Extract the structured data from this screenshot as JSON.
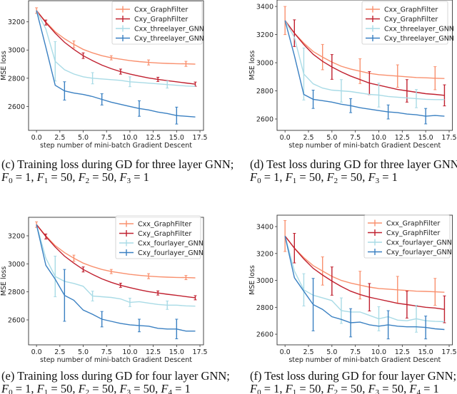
{
  "chart_data": [
    {
      "panel": "c",
      "type": "line",
      "caption": "(c) Training loss during GD for three layer GNN;",
      "params": [
        {
          "sub": "0",
          "val": "1"
        },
        {
          "sub": "1",
          "val": "50"
        },
        {
          "sub": "2",
          "val": "50"
        },
        {
          "sub": "3",
          "val": "1"
        }
      ],
      "xlabel": "step number of mini-batch Gradient Descent",
      "ylabel": "MSE loss",
      "xlim": [
        -0.85,
        17.88
      ],
      "ylim": [
        2430,
        3350
      ],
      "xticks": [
        "0.0",
        "2.5",
        "5.0",
        "7.5",
        "10.0",
        "12.5",
        "15.0",
        "17.5"
      ],
      "yticks": [
        "2600",
        "2800",
        "3000",
        "3200"
      ],
      "grid": false,
      "legend_position": "top-right",
      "x": [
        0,
        1,
        2,
        3,
        4,
        5,
        6,
        7,
        8,
        9,
        10,
        11,
        12,
        13,
        14,
        15,
        16,
        17
      ],
      "series": [
        {
          "name": "Cxx_GraphFilter",
          "color": "#f9906e",
          "y": [
            3280,
            3200,
            3130,
            3080,
            3040,
            3005,
            2980,
            2960,
            2945,
            2935,
            2925,
            2918,
            2912,
            2908,
            2905,
            2903,
            2902,
            2900
          ],
          "errorbars": [
            [
              0,
              20
            ],
            [
              4,
              25
            ],
            [
              8,
              15
            ],
            [
              12,
              18
            ],
            [
              16,
              18
            ]
          ]
        },
        {
          "name": "Cxy_GraphFilter",
          "color": "#c0202f",
          "y": [
            3280,
            3195,
            3120,
            3055,
            3005,
            2960,
            2925,
            2893,
            2868,
            2847,
            2830,
            2815,
            2802,
            2792,
            2783,
            2775,
            2766,
            2758
          ],
          "errorbars": [
            [
              1,
              18
            ],
            [
              5,
              20
            ],
            [
              9,
              18
            ],
            [
              13,
              15
            ],
            [
              17,
              15
            ]
          ]
        },
        {
          "name": "Cxx_threelayer_GNN",
          "color": "#a9dbe6",
          "y": [
            3280,
            3150,
            2920,
            2860,
            2830,
            2810,
            2800,
            2795,
            2790,
            2785,
            2775,
            2770,
            2765,
            2760,
            2755,
            2750,
            2745,
            2742
          ],
          "errorbars": [
            [
              2,
              140
            ],
            [
              6,
              40
            ],
            [
              10,
              35
            ],
            [
              14,
              25
            ]
          ]
        },
        {
          "name": "Cxy_threelayer_GNN",
          "color": "#3a80c2",
          "y": [
            3280,
            3020,
            2750,
            2710,
            2695,
            2685,
            2670,
            2650,
            2630,
            2615,
            2600,
            2585,
            2575,
            2560,
            2550,
            2535,
            2530,
            2525
          ],
          "errorbars": [
            [
              3,
              65
            ],
            [
              7,
              40
            ],
            [
              11,
              55
            ],
            [
              15,
              60
            ]
          ]
        }
      ]
    },
    {
      "panel": "d",
      "type": "line",
      "caption": "(d) Test loss during GD for three layer GNN;",
      "params": [
        {
          "sub": "0",
          "val": "1"
        },
        {
          "sub": "1",
          "val": "50"
        },
        {
          "sub": "2",
          "val": "50"
        },
        {
          "sub": "3",
          "val": "1"
        }
      ],
      "xlabel": "step number of mini-batch Gradient Descent",
      "ylabel": "MSE loss",
      "xlim": [
        -0.85,
        17.85
      ],
      "ylim": [
        2519,
        3446
      ],
      "xticks": [
        "0.0",
        "2.5",
        "5.0",
        "7.5",
        "10.0",
        "12.5",
        "15.0",
        "17.5"
      ],
      "yticks": [
        "2600",
        "2800",
        "3000",
        "3200",
        "3400"
      ],
      "grid": false,
      "legend_position": "top-right",
      "x": [
        0,
        1,
        2,
        3,
        4,
        5,
        6,
        7,
        8,
        9,
        10,
        11,
        12,
        13,
        14,
        15,
        16,
        17
      ],
      "series": [
        {
          "name": "Cxx_GraphFilter",
          "color": "#f9906e",
          "y": [
            3300,
            3210,
            3140,
            3080,
            3040,
            3005,
            2975,
            2955,
            2940,
            2925,
            2915,
            2910,
            2905,
            2900,
            2895,
            2893,
            2890,
            2888
          ],
          "errorbars": [
            [
              0,
              100
            ],
            [
              4,
              90
            ],
            [
              8,
              88
            ],
            [
              12,
              80
            ],
            [
              16,
              82
            ]
          ]
        },
        {
          "name": "Cxy_GraphFilter",
          "color": "#c0202f",
          "y": [
            3300,
            3210,
            3130,
            3060,
            3010,
            2970,
            2935,
            2905,
            2880,
            2855,
            2840,
            2825,
            2810,
            2800,
            2790,
            2780,
            2775,
            2768
          ],
          "errorbars": [
            [
              1,
              95
            ],
            [
              5,
              88
            ],
            [
              9,
              82
            ],
            [
              13,
              80
            ],
            [
              17,
              75
            ]
          ]
        },
        {
          "name": "Cxx_threelayer_GNN",
          "color": "#a9dbe6",
          "y": [
            3300,
            3180,
            2920,
            2850,
            2820,
            2805,
            2800,
            2795,
            2785,
            2775,
            2770,
            2760,
            2755,
            2750,
            2745,
            2740,
            2738,
            2738
          ],
          "errorbars": [
            [
              2,
              185
            ],
            [
              6,
              80
            ],
            [
              10,
              85
            ],
            [
              14,
              65
            ]
          ]
        },
        {
          "name": "Cxy_threelayer_GNN",
          "color": "#3a80c2",
          "y": [
            3300,
            3050,
            2775,
            2740,
            2730,
            2720,
            2705,
            2695,
            2680,
            2670,
            2660,
            2650,
            2645,
            2635,
            2630,
            2620,
            2625,
            2620
          ],
          "errorbars": [
            [
              3,
              65
            ],
            [
              7,
              50
            ],
            [
              11,
              50
            ],
            [
              15,
              55
            ]
          ]
        }
      ]
    },
    {
      "panel": "e",
      "type": "line",
      "caption": "(e) Training loss during GD for four layer GNN;",
      "params": [
        {
          "sub": "0",
          "val": "1"
        },
        {
          "sub": "1",
          "val": "50"
        },
        {
          "sub": "2",
          "val": "50"
        },
        {
          "sub": "3",
          "val": "50"
        },
        {
          "sub": "4",
          "val": "1"
        }
      ],
      "xlabel": "step number of mini-batch Gradient Descent",
      "ylabel": "MSE loss",
      "xlim": [
        -0.85,
        17.88
      ],
      "ylim": [
        2422,
        3332
      ],
      "xticks": [
        "0.0",
        "2.5",
        "5.0",
        "7.5",
        "10.0",
        "12.5",
        "15.0",
        "17.5"
      ],
      "yticks": [
        "2600",
        "2800",
        "3000",
        "3200"
      ],
      "grid": false,
      "legend_position": "top-right",
      "x": [
        0,
        1,
        2,
        3,
        4,
        5,
        6,
        7,
        8,
        9,
        10,
        11,
        12,
        13,
        14,
        15,
        16,
        17
      ],
      "series": [
        {
          "name": "Cxx_GraphFilter",
          "color": "#f9906e",
          "y": [
            3280,
            3200,
            3130,
            3080,
            3040,
            3005,
            2980,
            2960,
            2945,
            2935,
            2925,
            2918,
            2912,
            2908,
            2905,
            2903,
            2902,
            2900
          ],
          "errorbars": [
            [
              0,
              20
            ],
            [
              4,
              22
            ],
            [
              8,
              15
            ],
            [
              12,
              18
            ],
            [
              16,
              15
            ]
          ]
        },
        {
          "name": "Cxy_GraphFilter",
          "color": "#c0202f",
          "y": [
            3280,
            3195,
            3120,
            3055,
            3005,
            2960,
            2925,
            2893,
            2868,
            2847,
            2830,
            2815,
            2802,
            2792,
            2783,
            2775,
            2766,
            2758
          ],
          "errorbars": [
            [
              1,
              18
            ],
            [
              5,
              18
            ],
            [
              9,
              15
            ],
            [
              13,
              15
            ],
            [
              17,
              15
            ]
          ]
        },
        {
          "name": "Cxx_fourlayer_GNN",
          "color": "#a9dbe6",
          "y": [
            3280,
            3040,
            2910,
            2875,
            2860,
            2840,
            2770,
            2765,
            2760,
            2750,
            2725,
            2730,
            2720,
            2710,
            2705,
            2705,
            2700,
            2698
          ],
          "errorbars": [
            [
              2,
              145
            ],
            [
              6,
              35
            ],
            [
              10,
              30
            ],
            [
              14,
              30
            ]
          ]
        },
        {
          "name": "Cxy_fourlayer_GNN",
          "color": "#3a80c2",
          "y": [
            3280,
            2990,
            2890,
            2775,
            2740,
            2670,
            2640,
            2605,
            2590,
            2575,
            2565,
            2560,
            2555,
            2540,
            2535,
            2535,
            2520,
            2520
          ],
          "errorbars": [
            [
              3,
              185
            ],
            [
              7,
              55
            ],
            [
              11,
              45
            ],
            [
              15,
              70
            ]
          ]
        }
      ]
    },
    {
      "panel": "f",
      "type": "line",
      "caption": "(f) Test loss during GD for four layer GNN;",
      "params": [
        {
          "sub": "0",
          "val": "1"
        },
        {
          "sub": "1",
          "val": "50"
        },
        {
          "sub": "2",
          "val": "50"
        },
        {
          "sub": "3",
          "val": "50"
        },
        {
          "sub": "4",
          "val": "1"
        }
      ],
      "xlabel": "step number of mini-batch Gradient Descent",
      "ylabel": "MSE loss",
      "xlim": [
        -0.85,
        17.85
      ],
      "ylim": [
        2521,
        3485
      ],
      "xticks": [
        "0.0",
        "2.5",
        "5.0",
        "7.5",
        "10.0",
        "12.5",
        "15.0",
        "17.5"
      ],
      "yticks": [
        "2600",
        "2800",
        "3000",
        "3200",
        "3400"
      ],
      "grid": false,
      "legend_position": "top-right",
      "x": [
        0,
        1,
        2,
        3,
        4,
        5,
        6,
        7,
        8,
        9,
        10,
        11,
        12,
        13,
        14,
        15,
        16,
        17
      ],
      "series": [
        {
          "name": "Cxx_GraphFilter",
          "color": "#f9906e",
          "y": [
            3330,
            3240,
            3170,
            3110,
            3070,
            3030,
            3000,
            2980,
            2965,
            2950,
            2940,
            2935,
            2930,
            2925,
            2920,
            2918,
            2915,
            2912
          ],
          "errorbars": [
            [
              0,
              115
            ],
            [
              4,
              105
            ],
            [
              8,
              103
            ],
            [
              12,
              100
            ],
            [
              16,
              100
            ]
          ]
        },
        {
          "name": "Cxy_GraphFilter",
          "color": "#c0202f",
          "y": [
            3330,
            3240,
            3160,
            3090,
            3040,
            2995,
            2955,
            2920,
            2895,
            2875,
            2860,
            2845,
            2830,
            2820,
            2810,
            2800,
            2795,
            2785
          ],
          "errorbars": [
            [
              1,
              110
            ],
            [
              5,
              105
            ],
            [
              9,
              102
            ],
            [
              13,
              100
            ],
            [
              17,
              100
            ]
          ]
        },
        {
          "name": "Cxx_fourlayer_GNN",
          "color": "#a9dbe6",
          "y": [
            3330,
            3070,
            2930,
            2890,
            2870,
            2850,
            2775,
            2765,
            2765,
            2740,
            2715,
            2730,
            2705,
            2700,
            2715,
            2700,
            2695,
            2693
          ],
          "errorbars": [
            [
              2,
              120
            ],
            [
              6,
              95
            ],
            [
              10,
              90
            ],
            [
              14,
              100
            ]
          ]
        },
        {
          "name": "Cxy_fourlayer_GNN",
          "color": "#3a80c2",
          "y": [
            3330,
            3020,
            2920,
            2820,
            2785,
            2730,
            2710,
            2685,
            2690,
            2670,
            2660,
            2670,
            2660,
            2655,
            2655,
            2650,
            2640,
            2635
          ],
          "errorbars": [
            [
              3,
              195
            ],
            [
              7,
              105
            ],
            [
              11,
              105
            ],
            [
              15,
              85
            ]
          ]
        }
      ]
    }
  ]
}
